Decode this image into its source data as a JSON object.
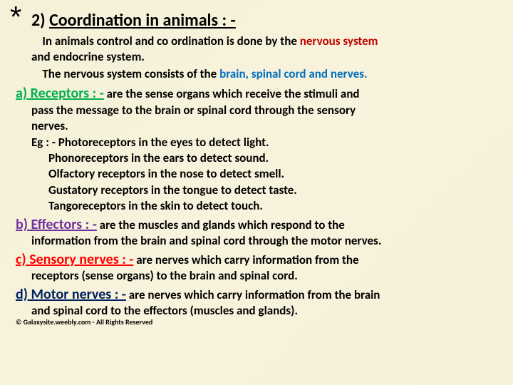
{
  "asterisk": "*",
  "title": {
    "num": "2) ",
    "text": "Coordination in animals : -"
  },
  "intro_line1a": "In animals control and co ordination is done by the ",
  "intro_line1b": "nervous system",
  "intro_line2": "and endocrine system.",
  "intro2_prefix": "The nervous system consists of the ",
  "intro2_hl": "brain, spinal cord and nerves.",
  "a": {
    "label": "a) Receptors : -",
    "lead": " are the sense organs which receive the stimuli and",
    "line2": "pass the message to the brain or spinal cord through the sensory",
    "line3": "nerves.",
    "eg1": "Eg : - Photoreceptors in the eyes to detect light.",
    "eg2": "Phonoreceptors in the ears to detect sound.",
    "eg3": "Olfactory receptors in the nose to detect smell.",
    "eg4": "Gustatory receptors in the tongue to detect taste.",
    "eg5": "Tangoreceptors in the skin to detect touch."
  },
  "b": {
    "label": "b) Effectors : -",
    "lead": " are the muscles and glands which respond to the",
    "line2": "information from the brain and spinal cord through the motor nerves."
  },
  "c": {
    "label": "c) Sensory nerves : -",
    "lead": " are nerves which carry information from the",
    "line2": "receptors (sense organs) to the brain and spinal cord."
  },
  "d": {
    "label": "d) Motor nerves : -",
    "lead": " are nerves which carry information from the brain",
    "line2": "and spinal cord to the effectors (muscles and glands)."
  },
  "copyright": "© Galaxysite.weebly.com - All Rights Reserved"
}
